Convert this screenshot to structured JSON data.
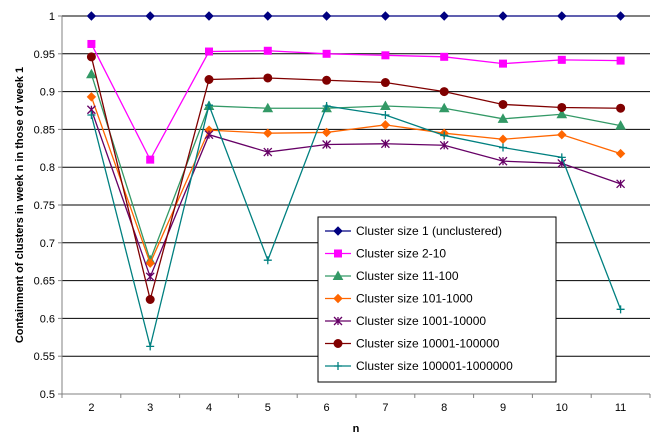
{
  "chart_data": {
    "type": "line",
    "title": "",
    "xlabel": "n",
    "ylabel": "Containment of clusters in week n in those of week 1",
    "x": [
      2,
      3,
      4,
      5,
      6,
      7,
      8,
      9,
      10,
      11
    ],
    "x_tick_labels": [
      "2",
      "3",
      "4",
      "5",
      "6",
      "7",
      "8",
      "9",
      "10",
      "11"
    ],
    "ylim": [
      0.5,
      1
    ],
    "y_ticks": [
      0.5,
      0.55,
      0.6,
      0.65,
      0.7,
      0.75,
      0.8,
      0.85,
      0.9,
      0.95,
      1
    ],
    "y_tick_labels": [
      "0.5",
      "0.55",
      "0.6",
      "0.65",
      "0.7",
      "0.75",
      "0.8",
      "0.85",
      "0.9",
      "0.95",
      "1"
    ],
    "grid": "horizontal",
    "legend_position": "lower-right",
    "series": [
      {
        "name": "Cluster size 1 (unclustered)",
        "color": "#000080",
        "marker": "diamond",
        "values": [
          1.0,
          1.0,
          1.0,
          1.0,
          1.0,
          1.0,
          1.0,
          1.0,
          1.0,
          1.0
        ]
      },
      {
        "name": "Cluster size 2-10",
        "color": "#ff00ff",
        "marker": "square",
        "values": [
          0.963,
          0.81,
          0.953,
          0.954,
          0.95,
          0.948,
          0.946,
          0.937,
          0.942,
          0.941
        ]
      },
      {
        "name": "Cluster size 11-100",
        "color": "#339966",
        "marker": "triangle",
        "values": [
          0.923,
          0.677,
          0.881,
          0.878,
          0.878,
          0.881,
          0.878,
          0.864,
          0.87,
          0.855
        ]
      },
      {
        "name": "Cluster size 101-1000",
        "color": "#ff6600",
        "marker": "diamond",
        "values": [
          0.893,
          0.673,
          0.849,
          0.845,
          0.846,
          0.856,
          0.845,
          0.837,
          0.843,
          0.818
        ]
      },
      {
        "name": "Cluster size 1001-10000",
        "color": "#660066",
        "marker": "star",
        "values": [
          0.876,
          0.655,
          0.843,
          0.82,
          0.83,
          0.831,
          0.829,
          0.808,
          0.805,
          0.778
        ]
      },
      {
        "name": "Cluster size 10001-100000",
        "color": "#800000",
        "marker": "circle",
        "values": [
          0.946,
          0.625,
          0.916,
          0.918,
          0.915,
          0.912,
          0.9,
          0.883,
          0.879,
          0.878
        ]
      },
      {
        "name": "Cluster size 100001-1000000",
        "color": "#008080",
        "marker": "plus",
        "values": [
          0.869,
          0.563,
          0.882,
          0.677,
          0.881,
          0.869,
          0.842,
          0.826,
          0.813,
          0.612
        ]
      }
    ]
  }
}
